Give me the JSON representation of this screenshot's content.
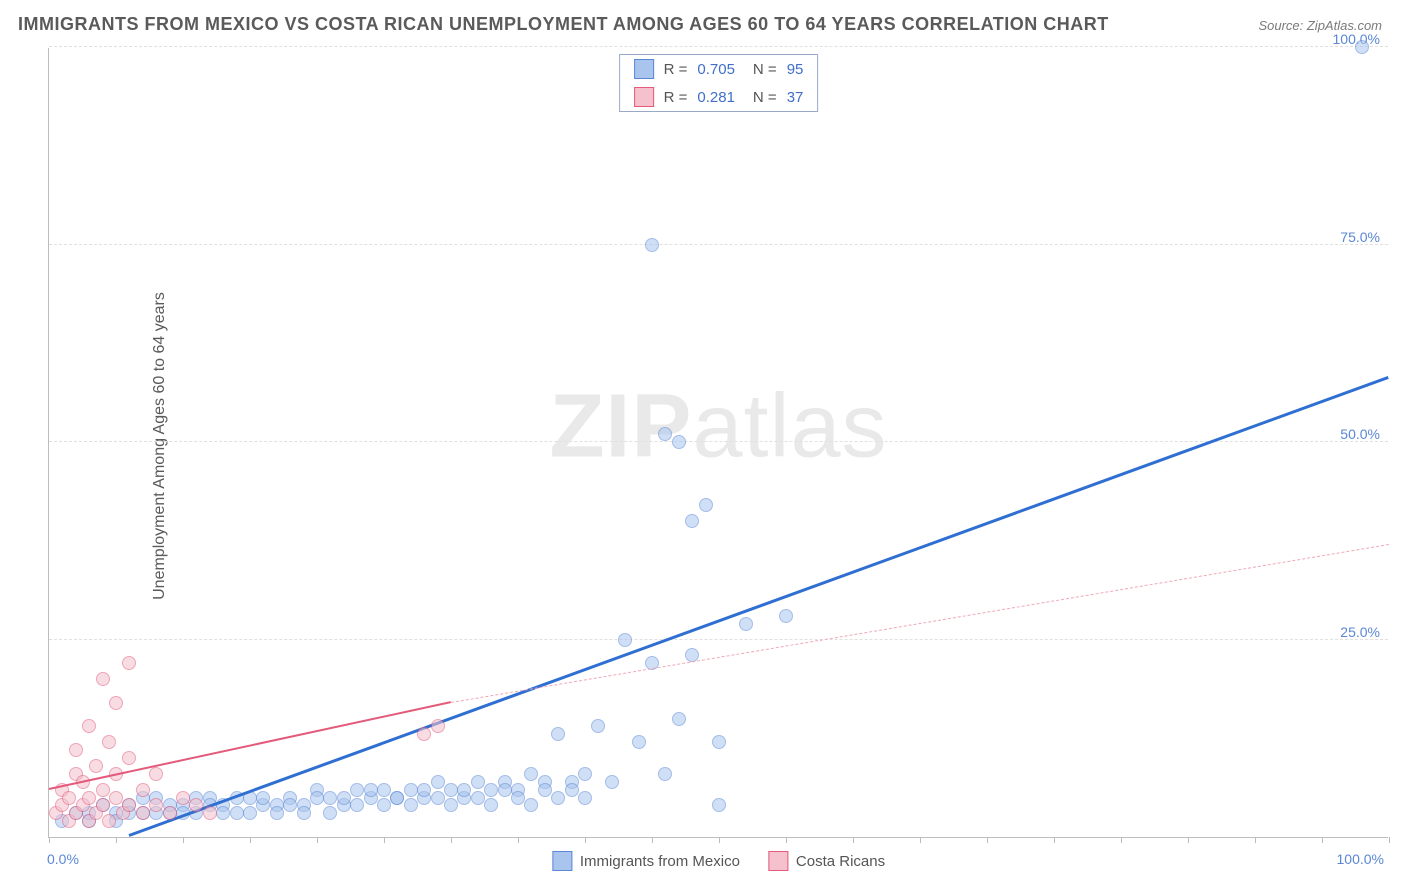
{
  "title": "IMMIGRANTS FROM MEXICO VS COSTA RICAN UNEMPLOYMENT AMONG AGES 60 TO 64 YEARS CORRELATION CHART",
  "source": "Source: ZipAtlas.com",
  "ylabel": "Unemployment Among Ages 60 to 64 years",
  "watermark": {
    "bold": "ZIP",
    "rest": "atlas"
  },
  "chart": {
    "type": "scatter",
    "xlim": [
      0,
      100
    ],
    "ylim": [
      0,
      100
    ],
    "xtick_positions": [
      0,
      5,
      10,
      15,
      20,
      25,
      30,
      35,
      40,
      45,
      50,
      55,
      60,
      65,
      70,
      75,
      80,
      85,
      90,
      95,
      100
    ],
    "xtick_labels": {
      "left": "0.0%",
      "right": "100.0%"
    },
    "ytick_positions": [
      25,
      50,
      75,
      100
    ],
    "ytick_labels": [
      "25.0%",
      "50.0%",
      "75.0%",
      "100.0%"
    ],
    "background_color": "#ffffff",
    "grid_color": "#e0e0e0",
    "axis_color": "#bdbdbd",
    "tick_label_color": "#5b87d6",
    "marker_radius": 7,
    "marker_opacity": 0.55,
    "series": [
      {
        "name": "Immigrants from Mexico",
        "color_fill": "#a9c5ed",
        "color_stroke": "#5b87d6",
        "trend": {
          "x1": 6,
          "y1": 0,
          "x2": 100,
          "y2": 58,
          "width": 3,
          "dash": "solid",
          "color": "#2f6fd1"
        },
        "stats": {
          "R": "0.705",
          "N": "95"
        },
        "points": [
          [
            1,
            2
          ],
          [
            2,
            3
          ],
          [
            3,
            2
          ],
          [
            4,
            4
          ],
          [
            3,
            3
          ],
          [
            5,
            3
          ],
          [
            6,
            4
          ],
          [
            7,
            3
          ],
          [
            8,
            5
          ],
          [
            9,
            3
          ],
          [
            10,
            4
          ],
          [
            11,
            3
          ],
          [
            12,
            5
          ],
          [
            13,
            4
          ],
          [
            14,
            3
          ],
          [
            15,
            5
          ],
          [
            16,
            4
          ],
          [
            17,
            4
          ],
          [
            18,
            5
          ],
          [
            19,
            4
          ],
          [
            20,
            6
          ],
          [
            21,
            5
          ],
          [
            22,
            4
          ],
          [
            23,
            6
          ],
          [
            24,
            5
          ],
          [
            25,
            6
          ],
          [
            26,
            5
          ],
          [
            27,
            6
          ],
          [
            28,
            5
          ],
          [
            29,
            7
          ],
          [
            30,
            6
          ],
          [
            31,
            5
          ],
          [
            32,
            7
          ],
          [
            33,
            6
          ],
          [
            34,
            7
          ],
          [
            35,
            6
          ],
          [
            36,
            8
          ],
          [
            37,
            7
          ],
          [
            38,
            13
          ],
          [
            39,
            7
          ],
          [
            40,
            8
          ],
          [
            41,
            14
          ],
          [
            42,
            7
          ],
          [
            43,
            25
          ],
          [
            44,
            12
          ],
          [
            45,
            22
          ],
          [
            45,
            75
          ],
          [
            46,
            8
          ],
          [
            46,
            51
          ],
          [
            47,
            50
          ],
          [
            47,
            15
          ],
          [
            48,
            40
          ],
          [
            48,
            23
          ],
          [
            49,
            42
          ],
          [
            50,
            4
          ],
          [
            50,
            12
          ],
          [
            52,
            27
          ],
          [
            55,
            28
          ],
          [
            98,
            100
          ],
          [
            5,
            2
          ],
          [
            6,
            3
          ],
          [
            7,
            5
          ],
          [
            8,
            3
          ],
          [
            9,
            4
          ],
          [
            10,
            3
          ],
          [
            11,
            5
          ],
          [
            12,
            4
          ],
          [
            13,
            3
          ],
          [
            14,
            5
          ],
          [
            15,
            3
          ],
          [
            16,
            5
          ],
          [
            17,
            3
          ],
          [
            18,
            4
          ],
          [
            19,
            3
          ],
          [
            20,
            5
          ],
          [
            21,
            3
          ],
          [
            22,
            5
          ],
          [
            23,
            4
          ],
          [
            24,
            6
          ],
          [
            25,
            4
          ],
          [
            26,
            5
          ],
          [
            27,
            4
          ],
          [
            28,
            6
          ],
          [
            29,
            5
          ],
          [
            30,
            4
          ],
          [
            31,
            6
          ],
          [
            32,
            5
          ],
          [
            33,
            4
          ],
          [
            34,
            6
          ],
          [
            35,
            5
          ],
          [
            36,
            4
          ],
          [
            37,
            6
          ],
          [
            38,
            5
          ],
          [
            39,
            6
          ],
          [
            40,
            5
          ]
        ]
      },
      {
        "name": "Costa Ricans",
        "color_fill": "#f4c1cd",
        "color_stroke": "#e35a7a",
        "trend_solid": {
          "x1": 0,
          "y1": 6,
          "x2": 30,
          "y2": 17,
          "width": 2.5,
          "color": "#e35a7a"
        },
        "trend_dash": {
          "x1": 30,
          "y1": 17,
          "x2": 100,
          "y2": 37,
          "width": 1,
          "color": "#f0a8b6"
        },
        "stats": {
          "R": "0.281",
          "N": "37"
        },
        "points": [
          [
            0.5,
            3
          ],
          [
            1,
            4
          ],
          [
            1,
            6
          ],
          [
            1.5,
            2
          ],
          [
            1.5,
            5
          ],
          [
            2,
            3
          ],
          [
            2,
            8
          ],
          [
            2,
            11
          ],
          [
            2.5,
            4
          ],
          [
            2.5,
            7
          ],
          [
            3,
            2
          ],
          [
            3,
            5
          ],
          [
            3,
            14
          ],
          [
            3.5,
            3
          ],
          [
            3.5,
            9
          ],
          [
            4,
            4
          ],
          [
            4,
            6
          ],
          [
            4,
            20
          ],
          [
            4.5,
            2
          ],
          [
            4.5,
            12
          ],
          [
            5,
            5
          ],
          [
            5,
            8
          ],
          [
            5,
            17
          ],
          [
            5.5,
            3
          ],
          [
            6,
            4
          ],
          [
            6,
            10
          ],
          [
            6,
            22
          ],
          [
            7,
            3
          ],
          [
            7,
            6
          ],
          [
            8,
            4
          ],
          [
            8,
            8
          ],
          [
            9,
            3
          ],
          [
            10,
            5
          ],
          [
            11,
            4
          ],
          [
            12,
            3
          ],
          [
            28,
            13
          ],
          [
            29,
            14
          ]
        ]
      }
    ]
  },
  "legend_bottom": [
    {
      "swatch_fill": "#a9c5ed",
      "swatch_stroke": "#5b87d6",
      "label": "Immigrants from Mexico"
    },
    {
      "swatch_fill": "#f4c1cd",
      "swatch_stroke": "#e35a7a",
      "label": "Costa Ricans"
    }
  ]
}
